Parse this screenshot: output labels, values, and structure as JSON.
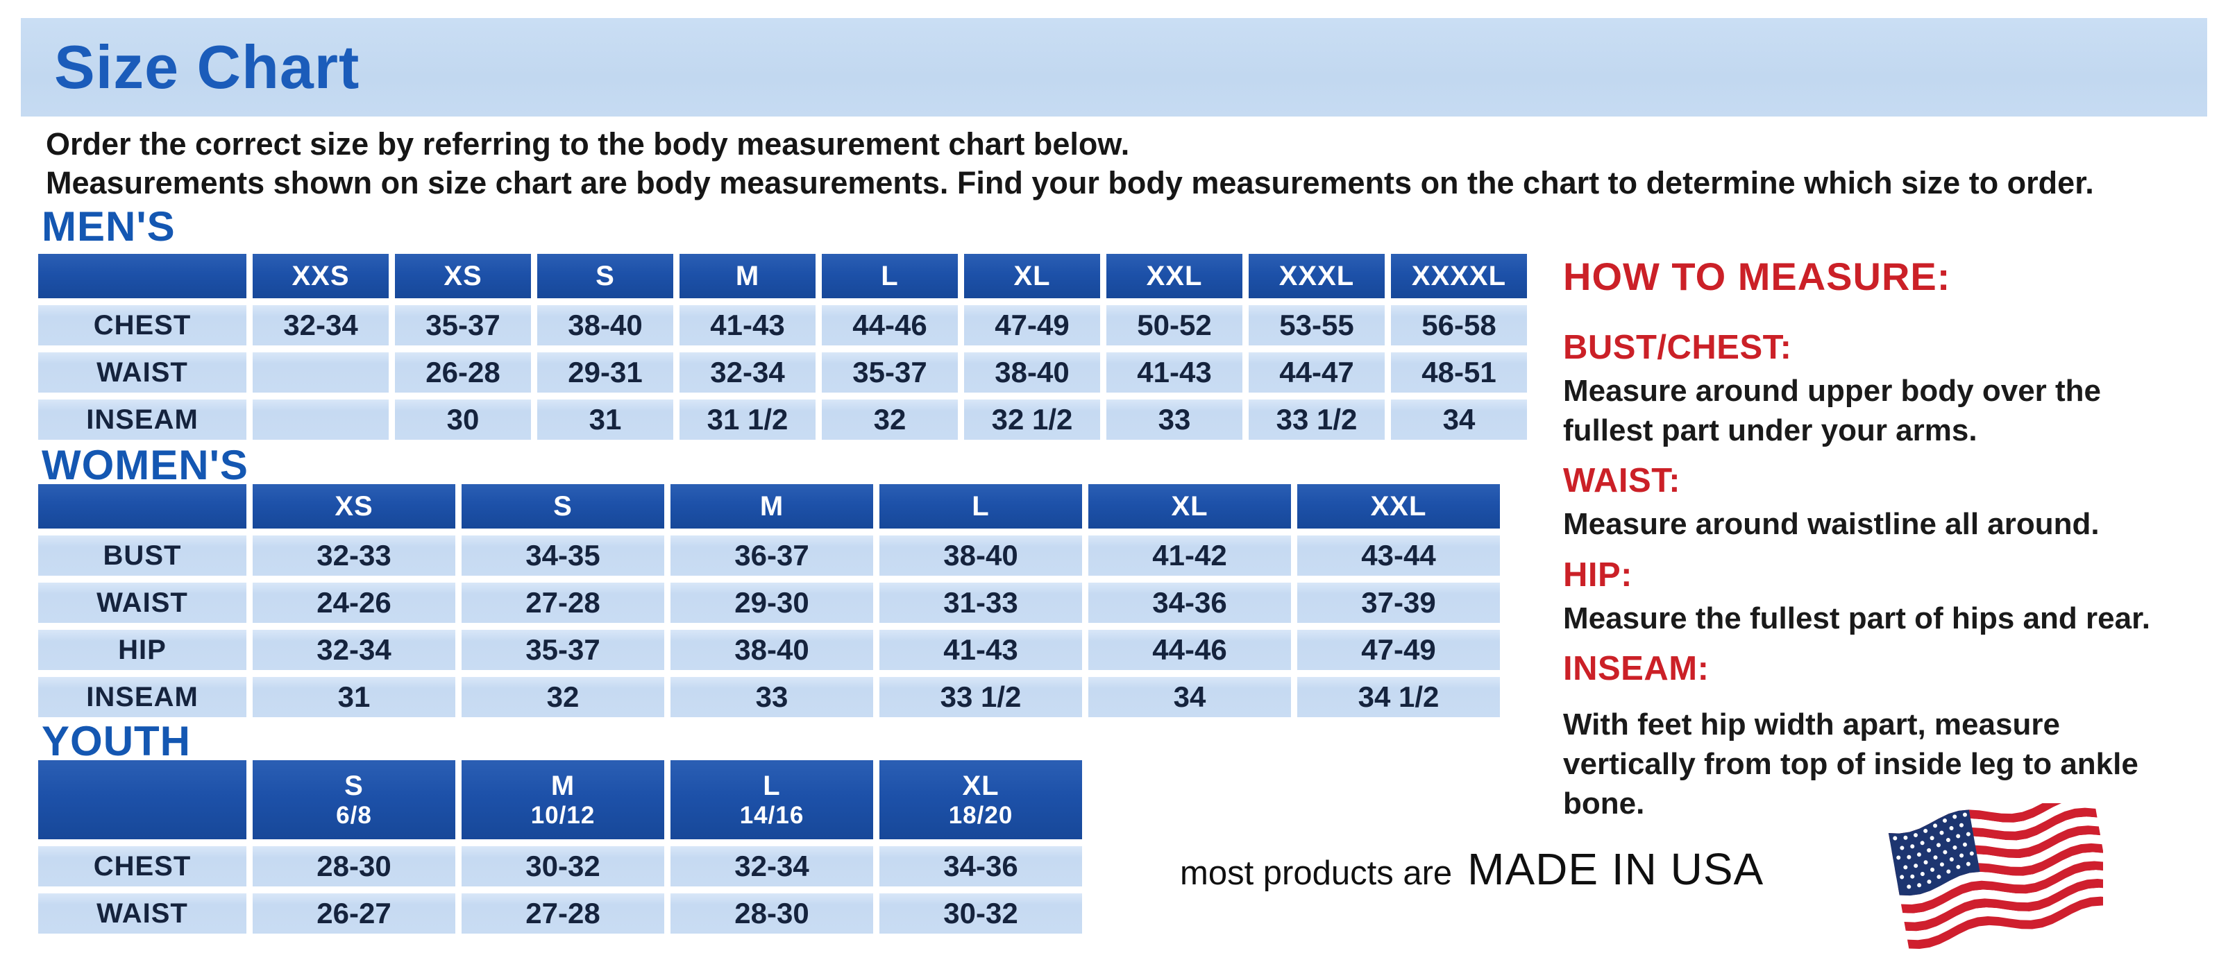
{
  "page": {
    "title": "Size Chart",
    "intro_line1": "Order the correct size by referring to the body measurement chart below.",
    "intro_line2": "Measurements shown on size chart are body measurements.  Find your body measurements on the chart to determine which size to order."
  },
  "colors": {
    "banner_blue": "#c2d8f0",
    "heading_blue": "#1457b2",
    "table_header_blue": "#1d51a9",
    "row_light_blue": "#c9dcf3",
    "accent_red": "#cb2027",
    "flag_red": "#cf1f2e",
    "flag_navy": "#1d3570"
  },
  "tables": {
    "mens": {
      "heading": "MEN'S",
      "columns": [
        "XXS",
        "XS",
        "S",
        "M",
        "L",
        "XL",
        "XXL",
        "XXXL",
        "XXXXL"
      ],
      "rows": [
        {
          "label": "CHEST",
          "values": [
            "32-34",
            "35-37",
            "38-40",
            "41-43",
            "44-46",
            "47-49",
            "50-52",
            "53-55",
            "56-58"
          ]
        },
        {
          "label": "WAIST",
          "values": [
            "",
            "26-28",
            "29-31",
            "32-34",
            "35-37",
            "38-40",
            "41-43",
            "44-47",
            "48-51"
          ]
        },
        {
          "label": "INSEAM",
          "values": [
            "",
            "30",
            "31",
            "31 1/2",
            "32",
            "32 1/2",
            "33",
            "33 1/2",
            "34"
          ]
        }
      ]
    },
    "womens": {
      "heading": "WOMEN'S",
      "columns": [
        "XS",
        "S",
        "M",
        "L",
        "XL",
        "XXL"
      ],
      "rows": [
        {
          "label": "BUST",
          "values": [
            "32-33",
            "34-35",
            "36-37",
            "38-40",
            "41-42",
            "43-44"
          ]
        },
        {
          "label": "WAIST",
          "values": [
            "24-26",
            "27-28",
            "29-30",
            "31-33",
            "34-36",
            "37-39"
          ]
        },
        {
          "label": "HIP",
          "values": [
            "32-34",
            "35-37",
            "38-40",
            "41-43",
            "44-46",
            "47-49"
          ]
        },
        {
          "label": "INSEAM",
          "values": [
            "31",
            "32",
            "33",
            "33 1/2",
            "34",
            "34 1/2"
          ]
        }
      ]
    },
    "youth": {
      "heading": "YOUTH",
      "columns": [
        {
          "size": "S",
          "range": "6/8"
        },
        {
          "size": "M",
          "range": "10/12"
        },
        {
          "size": "L",
          "range": "14/16"
        },
        {
          "size": "XL",
          "range": "18/20"
        }
      ],
      "rows": [
        {
          "label": "CHEST",
          "values": [
            "28-30",
            "30-32",
            "32-34",
            "34-36"
          ]
        },
        {
          "label": "WAIST",
          "values": [
            "26-27",
            "27-28",
            "28-30",
            "30-32"
          ]
        }
      ]
    }
  },
  "how_to_measure": {
    "title": "HOW TO MEASURE:",
    "items": [
      {
        "label": "BUST/CHEST:",
        "text": "Measure around upper body over the fullest part under your arms."
      },
      {
        "label": "WAIST:",
        "text": "Measure around waistline all around."
      },
      {
        "label": "HIP:",
        "text": "Measure the fullest part of hips and rear."
      },
      {
        "label": "INSEAM:",
        "text": "With feet hip width apart, measure vertically from top of inside leg to ankle bone."
      }
    ]
  },
  "footer": {
    "prefix": "most products are",
    "made_in": "MADE IN USA",
    "flag": "us-flag-icon"
  }
}
